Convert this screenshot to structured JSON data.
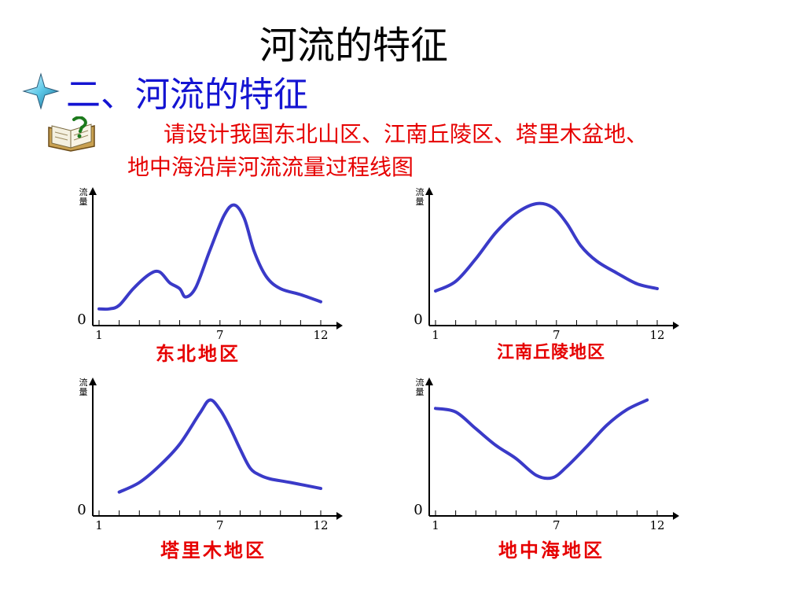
{
  "slide": {
    "title": "河流的特征",
    "section_heading": "二、河流的特征",
    "prompt_line1": "请设计我国东北山区、江南丘陵区、塔里木盆地、",
    "prompt_line2": "地中海沿岸河流流量过程线图"
  },
  "colors": {
    "curve": "#3a3ac8",
    "caption": "#e60000",
    "heading": "#1414d2"
  },
  "icons": {
    "bullet": "four-point-star-icon",
    "book": "question-book-icon"
  },
  "chart_data": [
    {
      "type": "line",
      "title": "东北地区",
      "ylabel": "流量",
      "xlabel": "",
      "y_zero_label": "0",
      "x_tick_labels": {
        "1": "1",
        "7": "7",
        "12": "12"
      },
      "xlim": [
        1,
        12
      ],
      "ylim": [
        0,
        10
      ],
      "x": [
        1,
        1.5,
        2,
        2.7,
        3.5,
        4,
        4.5,
        5,
        5.3,
        5.8,
        6.5,
        7.2,
        7.7,
        8.2,
        8.7,
        9.3,
        10,
        11,
        12
      ],
      "y": [
        1.0,
        1.0,
        1.3,
        2.7,
        3.9,
        4.1,
        3.2,
        2.7,
        2.0,
        2.8,
        5.9,
        8.8,
        9.7,
        8.6,
        5.8,
        3.7,
        2.7,
        2.2,
        1.6
      ]
    },
    {
      "type": "line",
      "title": "江南丘陵地区",
      "ylabel": "流量",
      "xlabel": "",
      "y_zero_label": "0",
      "x_tick_labels": {
        "1": "1",
        "7": "7",
        "12": "12"
      },
      "xlim": [
        1,
        12
      ],
      "ylim": [
        0,
        10
      ],
      "x": [
        1,
        2,
        3,
        4,
        5,
        6,
        6.8,
        7.5,
        8.2,
        9,
        10,
        11,
        12
      ],
      "y": [
        2.5,
        3.3,
        5.2,
        7.4,
        9.0,
        9.8,
        9.5,
        8.2,
        6.3,
        5.0,
        4.0,
        3.1,
        2.7
      ]
    },
    {
      "type": "line",
      "title": "塔里木地区",
      "ylabel": "流量",
      "xlabel": "",
      "y_zero_label": "0",
      "x_tick_labels": {
        "1": "1",
        "7": "7",
        "12": "12"
      },
      "xlim": [
        1,
        12
      ],
      "ylim": [
        0,
        10
      ],
      "x": [
        2,
        3,
        4,
        5,
        6,
        6.5,
        7,
        7.5,
        8,
        8.5,
        9,
        9.5,
        10.5,
        12
      ],
      "y": [
        1.6,
        2.4,
        3.8,
        5.6,
        8.2,
        9.3,
        8.5,
        7.0,
        5.2,
        3.6,
        3.0,
        2.7,
        2.4,
        1.9
      ]
    },
    {
      "type": "line",
      "title": "地中海地区",
      "ylabel": "流量",
      "xlabel": "",
      "y_zero_label": "0",
      "x_tick_labels": {
        "1": "1",
        "7": "7",
        "12": "12"
      },
      "xlim": [
        1,
        12
      ],
      "ylim": [
        0,
        10
      ],
      "x": [
        1,
        2,
        3,
        4,
        5,
        6,
        6.8,
        7.5,
        8.5,
        9.5,
        10.5,
        11.5
      ],
      "y": [
        8.6,
        8.3,
        6.9,
        5.5,
        4.4,
        3.0,
        2.8,
        3.7,
        5.4,
        7.2,
        8.5,
        9.3
      ]
    }
  ]
}
